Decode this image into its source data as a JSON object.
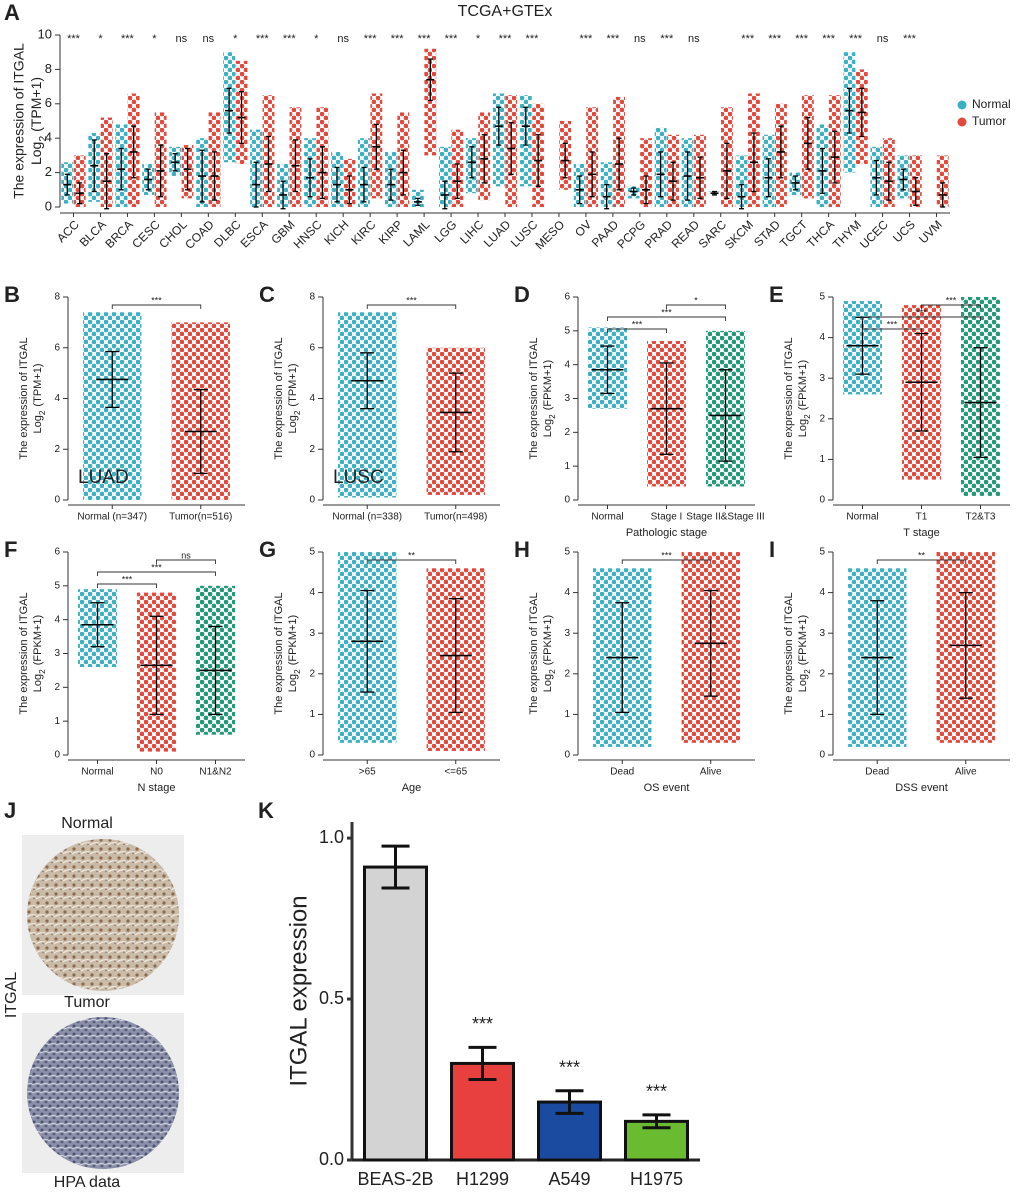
{
  "chart_data": [
    {
      "panel": "A",
      "type": "grouped_strip",
      "title": "TCGA+GTEx",
      "ylabel": "The expression of ITGAL",
      "ylabel_log": "Log",
      "ylabel_sub": "2",
      "ylabel_unit": "(TPM+1)",
      "ylim": [
        0,
        10
      ],
      "yticks": [
        0,
        2,
        4,
        6,
        8,
        10
      ],
      "legend": "right",
      "categories": [
        "ACC",
        "BLCA",
        "BRCA",
        "CESC",
        "CHOL",
        "COAD",
        "DLBC",
        "ESCA",
        "GBM",
        "HNSC",
        "KICH",
        "KIRC",
        "KIRP",
        "LAML",
        "LGG",
        "LIHC",
        "LUAD",
        "LUSC",
        "MESO",
        "OV",
        "PAAD",
        "PCPG",
        "PRAD",
        "READ",
        "SARC",
        "SKCM",
        "STAD",
        "TGCT",
        "THCA",
        "THYM",
        "UCEC",
        "UCS",
        "UVM"
      ],
      "significance": [
        "***",
        "*",
        "***",
        "*",
        "ns",
        "ns",
        "*",
        "***",
        "***",
        "*",
        "ns",
        "***",
        "***",
        "***",
        "***",
        "*",
        "***",
        "***",
        null,
        "***",
        "***",
        "ns",
        "***",
        "ns",
        null,
        "***",
        "***",
        "***",
        "***",
        "***",
        "ns",
        "***",
        null
      ],
      "series": [
        {
          "name": "Normal",
          "color": "#3ab0c3",
          "values": [
            1.3,
            2.4,
            2.2,
            1.6,
            2.6,
            1.8,
            5.6,
            1.3,
            0.7,
            1.7,
            1.3,
            1.3,
            1.3,
            0.3,
            0.7,
            2.6,
            4.7,
            4.7,
            null,
            1.0,
            0.6,
            0.9,
            1.9,
            1.8,
            0.8,
            0.6,
            1.7,
            1.4,
            2.1,
            5.6,
            1.7,
            1.6,
            null
          ],
          "sd": [
            0.6,
            1.5,
            1.2,
            0.6,
            0.5,
            1.5,
            1.3,
            1.3,
            0.8,
            1.1,
            1.0,
            1.0,
            0.9,
            0.2,
            0.8,
            0.9,
            1.1,
            1.1,
            null,
            0.8,
            0.7,
            0.2,
            1.3,
            1.4,
            0.1,
            0.7,
            1.1,
            0.4,
            1.3,
            1.3,
            1.0,
            0.6,
            null
          ],
          "min": [
            0.2,
            0.3,
            0,
            0.7,
            1.8,
            0,
            2.6,
            0,
            0,
            0,
            0,
            0,
            0,
            0,
            0,
            0.8,
            1.2,
            1.2,
            null,
            0,
            0,
            0.5,
            0,
            0,
            0.7,
            0,
            0,
            0.7,
            0,
            2.0,
            0,
            0.5,
            null
          ],
          "max": [
            2.6,
            4.3,
            4.8,
            2.5,
            3.5,
            4.0,
            9.0,
            4.5,
            2.5,
            4.0,
            3.2,
            4.0,
            3.2,
            1.0,
            3.5,
            4.0,
            6.6,
            6.5,
            null,
            2.5,
            2.6,
            1.2,
            4.6,
            4.0,
            0.9,
            3.0,
            4.2,
            2.0,
            4.8,
            9.0,
            3.5,
            3.0,
            null
          ]
        },
        {
          "name": "Tumor",
          "color": "#e2483b",
          "values": [
            0.8,
            1.5,
            3.2,
            2.1,
            2.2,
            1.8,
            5.2,
            2.5,
            2.4,
            2.0,
            1.0,
            3.5,
            2.0,
            7.4,
            1.5,
            2.8,
            3.4,
            2.7,
            2.7,
            1.9,
            2.5,
            1.0,
            1.5,
            1.7,
            2.1,
            2.6,
            3.2,
            3.7,
            2.9,
            5.5,
            1.5,
            0.9,
            0.7
          ],
          "sd": [
            0.6,
            1.6,
            1.5,
            1.5,
            1.2,
            1.4,
            1.5,
            1.6,
            1.5,
            1.5,
            0.8,
            1.3,
            1.3,
            1.2,
            1.0,
            1.4,
            1.5,
            1.5,
            1.0,
            1.3,
            1.5,
            0.8,
            1.1,
            1.2,
            1.6,
            1.7,
            1.5,
            1.5,
            1.5,
            1.4,
            1.1,
            0.8,
            0.7
          ],
          "min": [
            0,
            0,
            0,
            0,
            0.5,
            0,
            2.5,
            0,
            0,
            0,
            0,
            0.5,
            0,
            3.0,
            0,
            0.4,
            0,
            0,
            1.0,
            0,
            0,
            0,
            0,
            0,
            0,
            0,
            0,
            0.5,
            0,
            2.5,
            0,
            0,
            0
          ],
          "max": [
            3.0,
            5.2,
            6.6,
            5.5,
            3.6,
            5.5,
            8.5,
            6.5,
            5.8,
            5.8,
            2.8,
            6.6,
            5.5,
            9.2,
            4.5,
            5.5,
            6.5,
            6.0,
            5.0,
            5.8,
            6.4,
            4.0,
            4.2,
            4.2,
            5.8,
            6.6,
            6.0,
            6.5,
            6.5,
            8.0,
            4.0,
            3.0,
            3.0
          ]
        }
      ]
    },
    {
      "panel": "B",
      "type": "strip",
      "annotation": "LUAD",
      "ylabel": "The expression of ITGAL",
      "ylabel_log": "Log",
      "ylabel_sub": "2",
      "ylabel_unit": "(TPM+1)",
      "ylim": [
        0,
        8
      ],
      "yticks": [
        0,
        2,
        4,
        6,
        8
      ],
      "categories": [
        "Normal  (n=347)",
        "Tumor(n=516)"
      ],
      "colors": [
        "#3ab0c3",
        "#e2483b"
      ],
      "values": [
        4.75,
        2.7
      ],
      "sd": [
        1.1,
        1.65
      ],
      "min": [
        0,
        0
      ],
      "max": [
        7.4,
        7.0
      ],
      "comparisons": [
        {
          "groups": [
            "Normal  (n=347)",
            "Tumor(n=516)"
          ],
          "label": "***"
        }
      ]
    },
    {
      "panel": "C",
      "type": "strip",
      "annotation": "LUSC",
      "ylabel": "The expression of ITGAL",
      "ylabel_log": "Log",
      "ylabel_sub": "2",
      "ylabel_unit": "(TPM+1)",
      "ylim": [
        0,
        8
      ],
      "yticks": [
        0,
        2,
        4,
        6,
        8
      ],
      "categories": [
        "Normal  (n=338)",
        "Tumor(n=498)"
      ],
      "colors": [
        "#3ab0c3",
        "#e2483b"
      ],
      "values": [
        4.7,
        3.45
      ],
      "sd": [
        1.1,
        1.55
      ],
      "min": [
        0.1,
        0.2
      ],
      "max": [
        7.4,
        6.0
      ],
      "comparisons": [
        {
          "groups": [
            "Normal  (n=338)",
            "Tumor(n=498)"
          ],
          "label": "***"
        }
      ]
    },
    {
      "panel": "D",
      "type": "strip",
      "xlabel": "Pathologic stage",
      "ylabel": "The expression of ITGAL",
      "ylabel_log": "Log",
      "ylabel_sub": "2",
      "ylabel_unit": "(FPKM+1)",
      "ylim": [
        0,
        6
      ],
      "yticks": [
        0,
        1,
        2,
        3,
        4,
        5,
        6
      ],
      "categories": [
        "Normal",
        "Stage I",
        "Stage II&Stage III"
      ],
      "colors": [
        "#3ab0c3",
        "#e2483b",
        "#1f9a78"
      ],
      "values": [
        3.85,
        2.7,
        2.5
      ],
      "sd": [
        0.7,
        1.35,
        1.35
      ],
      "min": [
        2.7,
        0.4,
        0.4
      ],
      "max": [
        5.1,
        4.7,
        5.0
      ],
      "comparisons": [
        {
          "groups": [
            "Stage I",
            "Stage II&Stage III"
          ],
          "label": "*"
        },
        {
          "groups": [
            "Normal",
            "Stage II&Stage III"
          ],
          "label": "***"
        },
        {
          "groups": [
            "Normal",
            "Stage I"
          ],
          "label": "***"
        }
      ]
    },
    {
      "panel": "E",
      "type": "strip",
      "xlabel": "T stage",
      "ylabel": "The expression of ITGAL",
      "ylabel_log": "Log",
      "ylabel_sub": "2",
      "ylabel_unit": "(FPKM+1)",
      "ylim": [
        0,
        5
      ],
      "yticks": [
        0,
        1,
        2,
        3,
        4,
        5
      ],
      "categories": [
        "Normal",
        "T1",
        "T2&T3"
      ],
      "colors": [
        "#3ab0c3",
        "#e2483b",
        "#1f9a78"
      ],
      "values": [
        3.8,
        2.9,
        2.4
      ],
      "sd": [
        0.7,
        1.2,
        1.35
      ],
      "min": [
        2.6,
        0.5,
        0.1
      ],
      "max": [
        4.9,
        4.8,
        5.0
      ],
      "comparisons": [
        {
          "groups": [
            "T1",
            "T2&T3"
          ],
          "label": "***"
        },
        {
          "groups": [
            "Normal",
            "T2&T3"
          ],
          "label": "***"
        },
        {
          "groups": [
            "Normal",
            "T1"
          ],
          "label": "***"
        }
      ]
    },
    {
      "panel": "F",
      "type": "strip",
      "xlabel": "N stage",
      "ylabel": "The expression of ITGAL",
      "ylabel_log": "Log",
      "ylabel_sub": "2",
      "ylabel_unit": "(FPKM+1)",
      "ylim": [
        0,
        6
      ],
      "yticks": [
        0,
        1,
        2,
        3,
        4,
        5,
        6
      ],
      "categories": [
        "Normal",
        "N0",
        "N1&N2"
      ],
      "colors": [
        "#3ab0c3",
        "#e2483b",
        "#1f9a78"
      ],
      "values": [
        3.85,
        2.65,
        2.5
      ],
      "sd": [
        0.65,
        1.45,
        1.3
      ],
      "min": [
        2.6,
        0.1,
        0.6
      ],
      "max": [
        4.9,
        4.8,
        5.0
      ],
      "comparisons": [
        {
          "groups": [
            "N0",
            "N1&N2"
          ],
          "label": "ns"
        },
        {
          "groups": [
            "Normal",
            "N1&N2"
          ],
          "label": "***"
        },
        {
          "groups": [
            "Normal",
            "N0"
          ],
          "label": "***"
        }
      ]
    },
    {
      "panel": "G",
      "type": "strip",
      "xlabel": "Age",
      "ylabel": "The expression of ITGAL",
      "ylabel_log": "Log",
      "ylabel_sub": "2",
      "ylabel_unit": "(FPKM+1)",
      "ylim": [
        0,
        5
      ],
      "yticks": [
        0,
        1,
        2,
        3,
        4,
        5
      ],
      "categories": [
        ">65",
        "<=65"
      ],
      "colors": [
        "#3ab0c3",
        "#e2483b"
      ],
      "values": [
        2.8,
        2.45
      ],
      "sd": [
        1.25,
        1.4
      ],
      "min": [
        0.3,
        0.1
      ],
      "max": [
        5.0,
        4.6
      ],
      "comparisons": [
        {
          "groups": [
            ">65",
            "<=65"
          ],
          "label": "**"
        }
      ]
    },
    {
      "panel": "H",
      "type": "strip",
      "xlabel": "OS event",
      "ylabel": "The expression of ITGAL",
      "ylabel_log": "Log",
      "ylabel_sub": "2",
      "ylabel_unit": "(FPKM+1)",
      "ylim": [
        0,
        5
      ],
      "yticks": [
        0,
        1,
        2,
        3,
        4,
        5
      ],
      "categories": [
        "Dead",
        "Alive"
      ],
      "colors": [
        "#3ab0c3",
        "#e2483b"
      ],
      "values": [
        2.4,
        2.75
      ],
      "sd": [
        1.35,
        1.3
      ],
      "min": [
        0.2,
        0.3
      ],
      "max": [
        4.6,
        5.0
      ],
      "comparisons": [
        {
          "groups": [
            "Dead",
            "Alive"
          ],
          "label": "***"
        }
      ]
    },
    {
      "panel": "I",
      "type": "strip",
      "xlabel": "DSS event",
      "ylabel": "The expression of ITGAL",
      "ylabel_log": "Log",
      "ylabel_sub": "2",
      "ylabel_unit": "(FPKM+1)",
      "ylim": [
        0,
        5
      ],
      "yticks": [
        0,
        1,
        2,
        3,
        4,
        5
      ],
      "categories": [
        "Dead",
        "Alive"
      ],
      "colors": [
        "#3ab0c3",
        "#e2483b"
      ],
      "values": [
        2.4,
        2.7
      ],
      "sd": [
        1.4,
        1.3
      ],
      "min": [
        0.2,
        0.3
      ],
      "max": [
        4.6,
        5.0
      ],
      "comparisons": [
        {
          "groups": [
            "Dead",
            "Alive"
          ],
          "label": "**"
        }
      ]
    },
    {
      "panel": "K",
      "type": "bar",
      "ylabel": "ITGAL expression",
      "ylim": [
        0,
        1.05
      ],
      "yticks": [
        {
          "value": 0,
          "label": "0.0"
        },
        {
          "value": 0.5,
          "label": "0.5"
        },
        {
          "value": 1,
          "label": "1.0"
        }
      ],
      "categories": [
        "BEAS-2B",
        "H1299",
        "A549",
        "H1975"
      ],
      "colors": [
        "#d3d3d3",
        "#e8403f",
        "#1a4ba0",
        "#6bbb30"
      ],
      "values": [
        0.91,
        0.3,
        0.18,
        0.12
      ],
      "errors": [
        0.065,
        0.05,
        0.035,
        0.02
      ],
      "significance": [
        null,
        "***",
        "***",
        "***"
      ]
    }
  ],
  "panel_j": {
    "panel": "J",
    "normal": "Normal",
    "tumor": "Tumor",
    "gene": "ITGAL",
    "source": "HPA data"
  }
}
